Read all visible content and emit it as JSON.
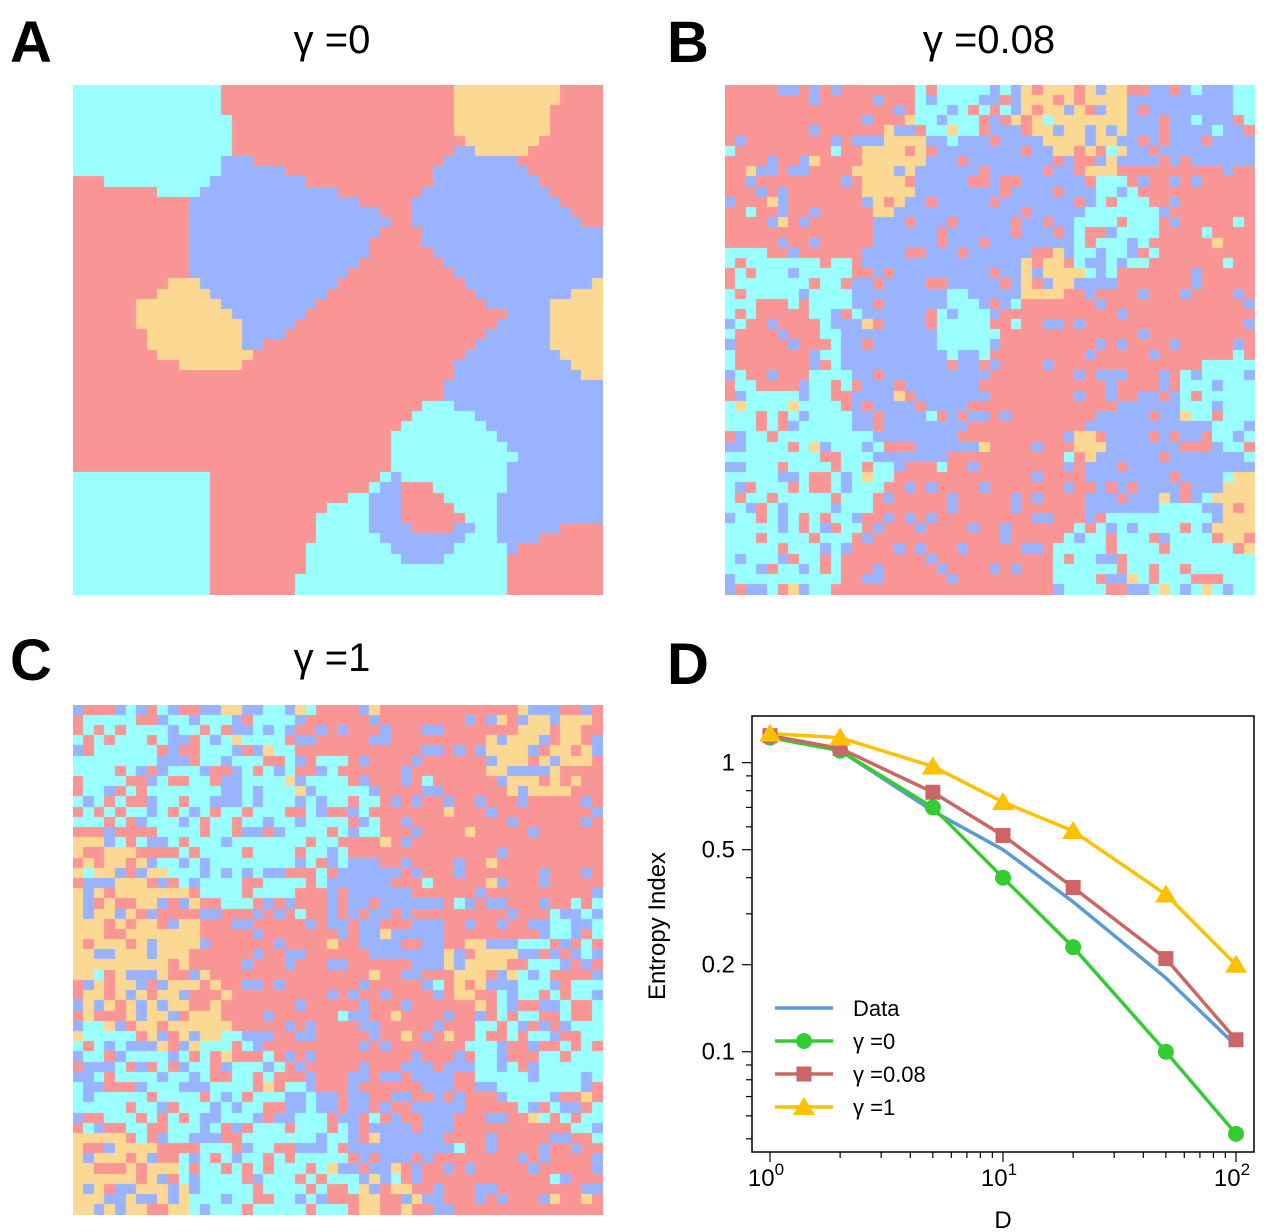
{
  "panels": {
    "A": {
      "letter": "A",
      "title": "γ =0"
    },
    "B": {
      "letter": "B",
      "title": "γ =0.08"
    },
    "C": {
      "letter": "C",
      "title": "γ =1"
    },
    "D": {
      "letter": "D"
    }
  },
  "colors": {
    "cyan": "#99ffff",
    "salmon": "#f99595",
    "periwinkle": "#99b3ff",
    "peach": "#fcd993",
    "data": "#5b9bd5",
    "gamma0": "#33cc33",
    "gamma008": "#cc6666",
    "gamma1": "#ffc000"
  },
  "chart_data": {
    "type": "line",
    "xscale": "log",
    "yscale": "log",
    "xlabel": "D",
    "ylabel": "Entropy Index",
    "xlim": [
      1,
      100
    ],
    "ylim": [
      0.045,
      1.45
    ],
    "xticks": [
      {
        "value": 1,
        "base": "10",
        "exp": "0"
      },
      {
        "value": 10,
        "base": "10",
        "exp": "1"
      },
      {
        "value": 100,
        "base": "10",
        "exp": "2"
      }
    ],
    "yticks": [
      {
        "value": 0.1,
        "label": "0.1"
      },
      {
        "value": 0.2,
        "label": "0.2"
      },
      {
        "value": 0.5,
        "label": "0.5"
      },
      {
        "value": 1,
        "label": "1"
      }
    ],
    "legend_position": "bottom-left",
    "series": [
      {
        "name": "Data",
        "marker": "none",
        "color": "#5b9bd5",
        "x": [
          1,
          2,
          5,
          10,
          20,
          50,
          100
        ],
        "y": [
          1.24,
          1.1,
          0.68,
          0.5,
          0.33,
          0.18,
          0.105
        ]
      },
      {
        "name": "γ =0",
        "marker": "circle",
        "color": "#33cc33",
        "x": [
          1,
          2,
          5,
          10,
          20,
          50,
          100
        ],
        "y": [
          1.22,
          1.1,
          0.7,
          0.4,
          0.23,
          0.1,
          0.052
        ]
      },
      {
        "name": "γ =0.08",
        "marker": "square",
        "color": "#cc6666",
        "x": [
          1,
          2,
          5,
          10,
          20,
          50,
          100
        ],
        "y": [
          1.24,
          1.12,
          0.79,
          0.56,
          0.37,
          0.21,
          0.11
        ]
      },
      {
        "name": "γ =1",
        "marker": "triangle",
        "color": "#ffc000",
        "x": [
          1,
          2,
          5,
          10,
          20,
          50,
          100
        ],
        "y": [
          1.26,
          1.22,
          0.97,
          0.73,
          0.58,
          0.35,
          0.2
        ]
      }
    ]
  }
}
